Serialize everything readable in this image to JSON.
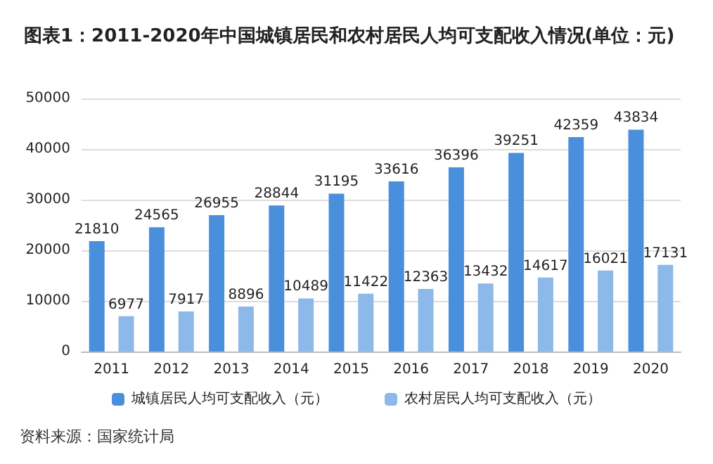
{
  "chart_data": {
    "type": "bar",
    "title": "图表1：2011-2020年中国城镇居民和农村居民人均可支配收入情况(单位：元)",
    "categories": [
      "2011",
      "2012",
      "2013",
      "2014",
      "2015",
      "2016",
      "2017",
      "2018",
      "2019",
      "2020"
    ],
    "series": [
      {
        "name": "城镇居民人均可支配收入（元）",
        "color": "#4a8fdb",
        "values": [
          21810,
          24565,
          26955,
          28844,
          31195,
          33616,
          36396,
          39251,
          42359,
          43834
        ]
      },
      {
        "name": "农村居民人均可支配收入（元）",
        "color": "#8db8ea",
        "values": [
          6977,
          7917,
          8896,
          10489,
          11422,
          12363,
          13432,
          14617,
          16021,
          17131
        ]
      }
    ],
    "ylim": [
      0,
      50000
    ],
    "yticks": [
      0,
      10000,
      20000,
      30000,
      40000,
      50000
    ],
    "grid": "y",
    "legend": "bottom",
    "data_labels": true,
    "annotations": [
      "资料来源：国家统计局"
    ]
  }
}
